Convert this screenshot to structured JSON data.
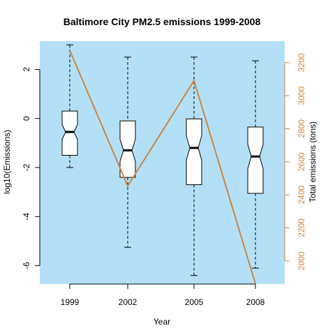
{
  "chart_data": {
    "type": "boxplot",
    "title": "Baltimore City PM2.5 emissions 1999-2008",
    "xlabel": "Year",
    "ylabel": "log10(Emissions)",
    "ylabel_right": "Total emissions (tons)",
    "categories": [
      "1999",
      "2002",
      "2005",
      "2008"
    ],
    "ylim": [
      -6.75,
      3.15
    ],
    "ylim_right": [
      1860,
      3330
    ],
    "yticks": [
      -6,
      -4,
      -2,
      0,
      2
    ],
    "yticks_right": [
      2000,
      2200,
      2400,
      2600,
      2800,
      3000,
      3200
    ],
    "panel_color": "#b3e0f7",
    "line_color": "#cd853f",
    "right_axis_color": "#cd853f",
    "boxes": [
      {
        "category": "1999",
        "whisker_low": -2.0,
        "q1": -1.5,
        "median": -0.55,
        "q3": 0.3,
        "whisker_high": 3.0,
        "notch_low": -0.85,
        "notch_high": -0.25
      },
      {
        "category": "2002",
        "whisker_low": -5.25,
        "q1": -2.4,
        "median": -1.3,
        "q3": -0.1,
        "whisker_high": 2.5,
        "notch_low": -1.75,
        "notch_high": -0.85
      },
      {
        "category": "2005",
        "whisker_low": -6.4,
        "q1": -2.7,
        "median": -1.2,
        "q3": -0.02,
        "whisker_high": 2.5,
        "notch_low": -1.7,
        "notch_high": -0.7
      },
      {
        "category": "2008",
        "whisker_low": -6.1,
        "q1": -3.05,
        "median": -1.55,
        "q3": -0.35,
        "whisker_high": 2.35,
        "notch_low": -2.05,
        "notch_high": -1.05
      }
    ],
    "total_emissions": {
      "years": [
        "1999",
        "2002",
        "2005",
        "2008"
      ],
      "values": [
        3274,
        2454,
        3091,
        1862
      ]
    }
  }
}
